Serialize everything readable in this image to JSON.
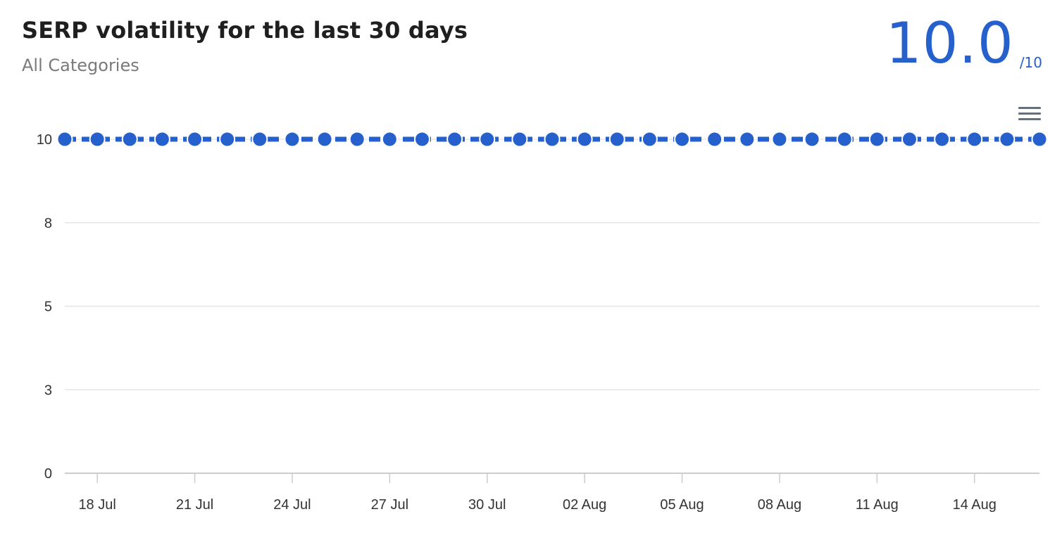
{
  "header": {
    "title": "SERP volatility for the last 30 days",
    "subtitle": "All Categories",
    "score_value": "10.0",
    "score_max": "/10",
    "menu_icon": "hamburger-menu-icon"
  },
  "colors": {
    "accent": "#2660cc",
    "line": "#2660cc",
    "grid": "#e6e6e6",
    "axis_text": "#333333"
  },
  "chart_data": {
    "type": "line",
    "title": "SERP volatility for the last 30 days",
    "subtitle": "All Categories",
    "xlabel": "",
    "ylabel": "",
    "ylim": [
      0,
      10
    ],
    "y_ticks": [
      {
        "value": 0,
        "label": "0"
      },
      {
        "value": 2.5,
        "label": "3"
      },
      {
        "value": 5,
        "label": "5"
      },
      {
        "value": 7.5,
        "label": "8"
      },
      {
        "value": 10,
        "label": "10"
      }
    ],
    "x_tick_labels": [
      "18 Jul",
      "21 Jul",
      "24 Jul",
      "27 Jul",
      "30 Jul",
      "02 Aug",
      "05 Aug",
      "08 Aug",
      "11 Aug",
      "14 Aug"
    ],
    "x": [
      "17 Jul",
      "18 Jul",
      "19 Jul",
      "20 Jul",
      "21 Jul",
      "22 Jul",
      "23 Jul",
      "24 Jul",
      "25 Jul",
      "26 Jul",
      "27 Jul",
      "28 Jul",
      "29 Jul",
      "30 Jul",
      "31 Jul",
      "01 Aug",
      "02 Aug",
      "03 Aug",
      "04 Aug",
      "05 Aug",
      "06 Aug",
      "07 Aug",
      "08 Aug",
      "09 Aug",
      "10 Aug",
      "11 Aug",
      "12 Aug",
      "13 Aug",
      "14 Aug",
      "15 Aug",
      "16 Aug"
    ],
    "series": [
      {
        "values": [
          10,
          10,
          10,
          10,
          10,
          10,
          10,
          10,
          10,
          10,
          10,
          10,
          10,
          10,
          10,
          10,
          10,
          10,
          10,
          10,
          10,
          10,
          10,
          10,
          10,
          10,
          10,
          10,
          10,
          10,
          10
        ]
      }
    ],
    "line_style": "dashed",
    "grid": true,
    "legend": "none"
  }
}
